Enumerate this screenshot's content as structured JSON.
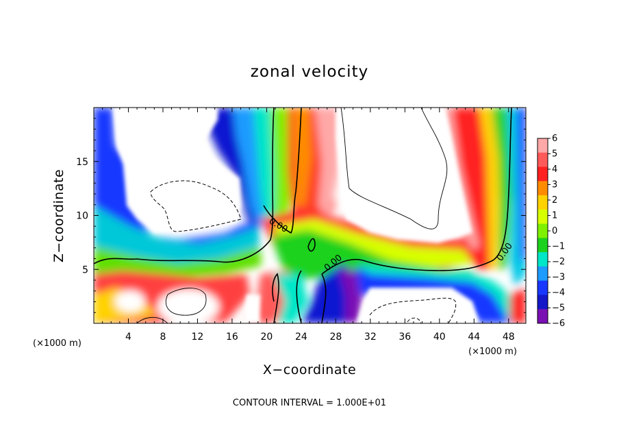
{
  "chart_data": {
    "type": "heatmap",
    "title": "zonal velocity",
    "xlabel": "X−coordinate",
    "ylabel": "Z−coordinate",
    "x_unit_left": "(×1000 m)",
    "x_unit_right": "(×1000 m)",
    "footer": "CONTOUR INTERVAL = 1.000E+01",
    "xlim": [
      0,
      50
    ],
    "ylim": [
      0,
      20
    ],
    "xticks": [
      4,
      8,
      12,
      16,
      20,
      24,
      28,
      32,
      36,
      40,
      44,
      48
    ],
    "yticks": [
      5,
      10,
      15
    ],
    "colorbar": {
      "range": [
        -6,
        6
      ],
      "labels": [
        "6",
        "5",
        "4",
        "3",
        "2",
        "1",
        "0",
        "−1",
        "−2",
        "−3",
        "−4",
        "−5",
        "−6"
      ],
      "colors": [
        "#ffa8a8",
        "#ff5a5a",
        "#ff2020",
        "#ff8c00",
        "#ffd200",
        "#d8ff00",
        "#7ef000",
        "#1cd21c",
        "#00e6c8",
        "#1e9bff",
        "#1838ff",
        "#1418c8",
        "#7a10b4"
      ]
    },
    "contour_labels": [
      {
        "text": "0.00",
        "x": 21.2,
        "y": 9.0
      },
      {
        "text": "0.00",
        "x": 27.6,
        "y": 5.0
      },
      {
        "text": "0.00",
        "x": 47.5,
        "y": 6.8
      }
    ],
    "grid": false,
    "legend": "colorbar-right"
  }
}
